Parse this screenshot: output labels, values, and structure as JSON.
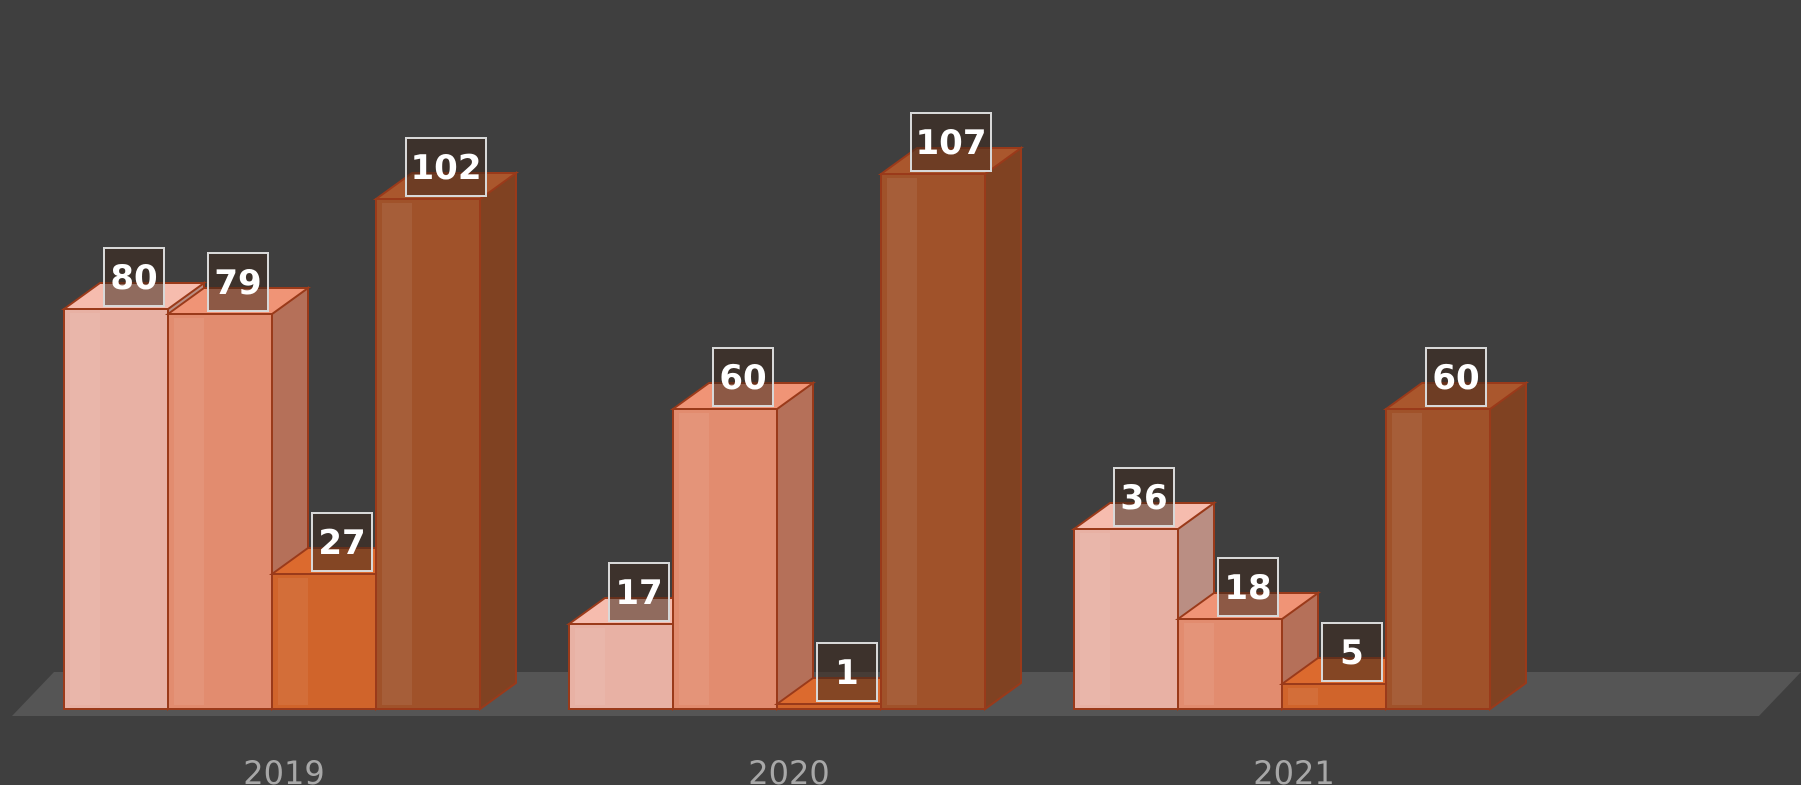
{
  "chart_data": {
    "type": "bar",
    "style": "3d-clustered",
    "categories": [
      "2019",
      "2020",
      "2021"
    ],
    "series": [
      {
        "values": [
          80,
          17,
          36
        ],
        "color": "#e8b1a4"
      },
      {
        "values": [
          79,
          60,
          18
        ],
        "color": "#e28c6f"
      },
      {
        "values": [
          27,
          1,
          5
        ],
        "color": "#d0642b"
      },
      {
        "values": [
          102,
          107,
          60
        ],
        "color": "#a0522a"
      }
    ],
    "data_labels": true,
    "ylim": [
      0,
      107
    ],
    "grid": false,
    "legend": "none",
    "background": "#3f3f3f",
    "floor_color": "#555555"
  }
}
